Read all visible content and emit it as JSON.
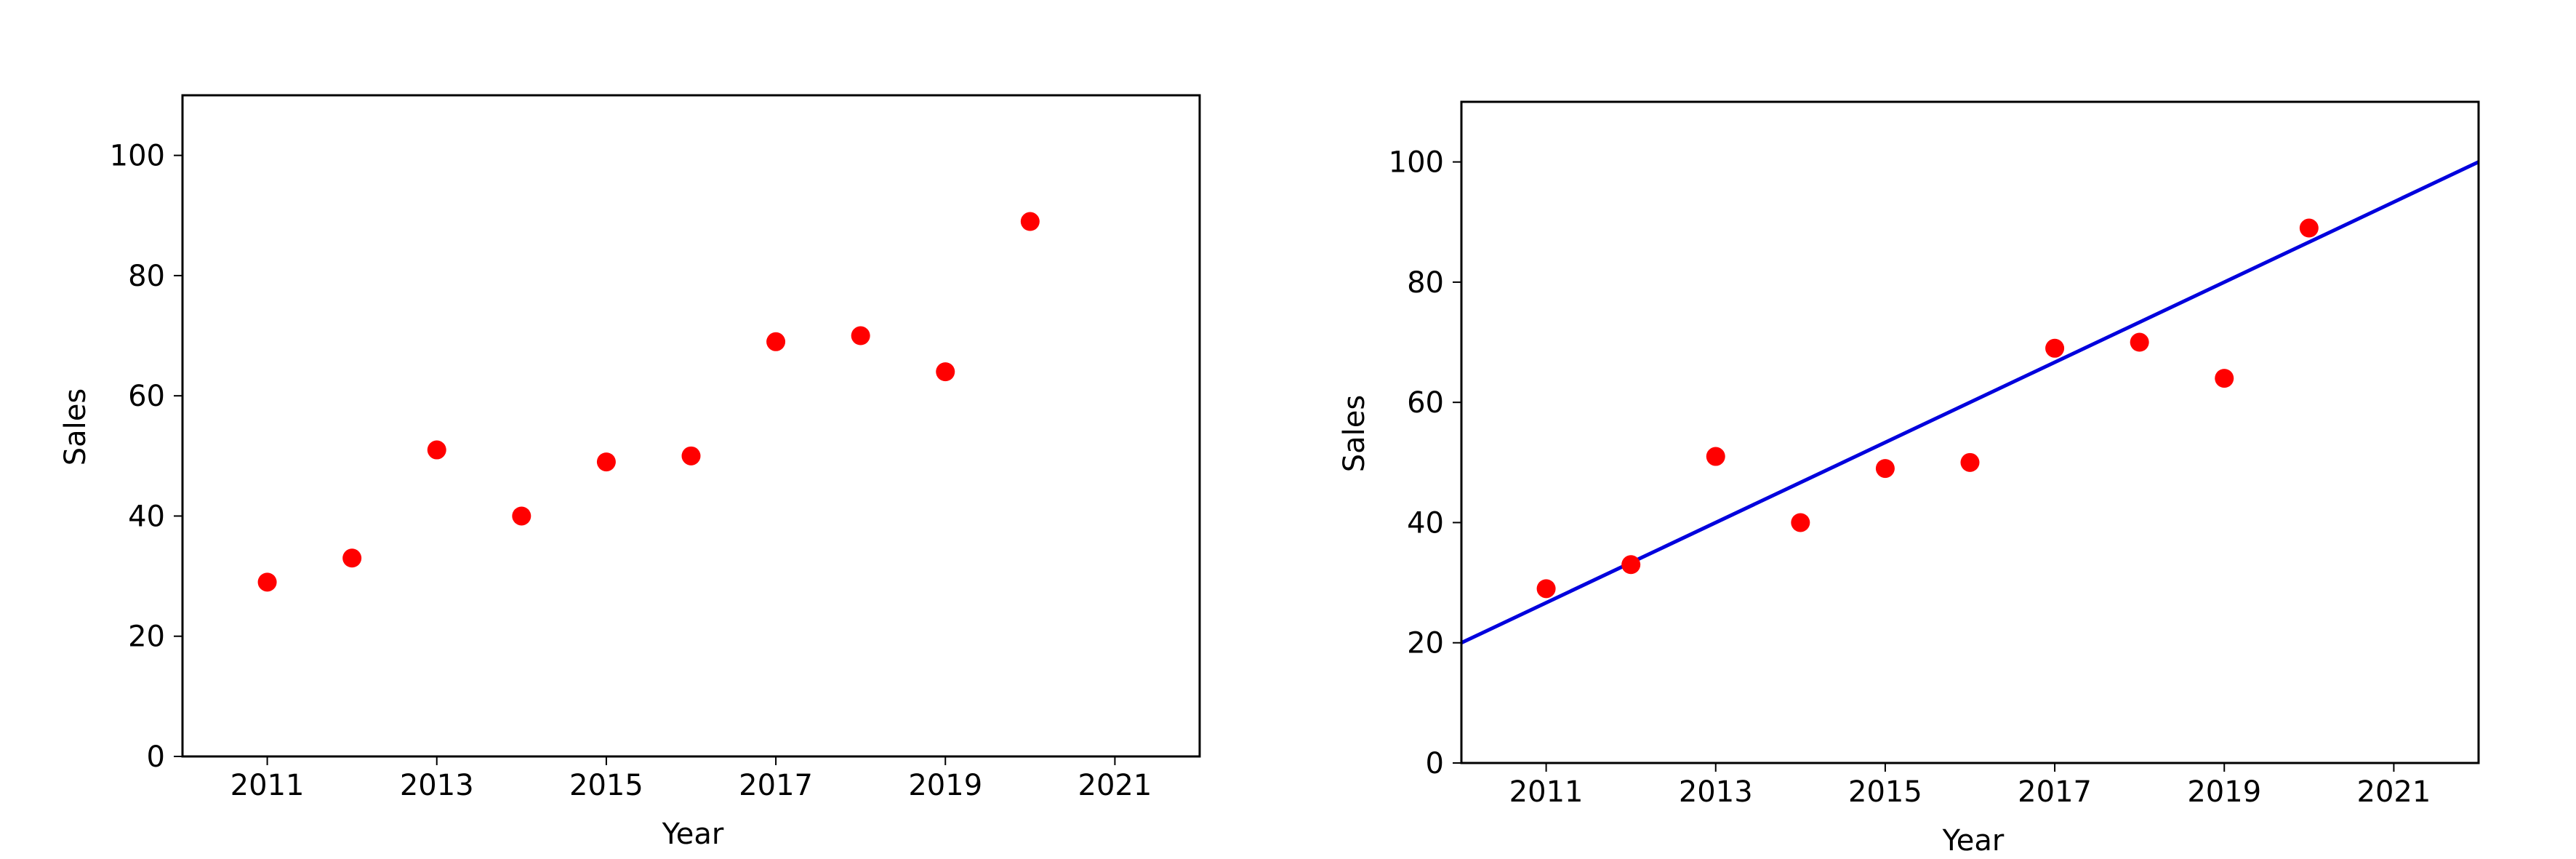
{
  "chart_data": [
    {
      "type": "scatter",
      "title": "",
      "xlabel": "Year",
      "ylabel": "Sales",
      "xlim": [
        2010,
        2022
      ],
      "ylim": [
        0,
        110
      ],
      "xticks": [
        2011,
        2013,
        2015,
        2017,
        2019,
        2021
      ],
      "yticks": [
        0,
        20,
        40,
        60,
        80,
        100
      ],
      "grid": false,
      "legend": "none",
      "series": [
        {
          "color": "#ff0000",
          "x": [
            2011,
            2012,
            2013,
            2014,
            2015,
            2016,
            2017,
            2018,
            2019,
            2020
          ],
          "y": [
            29,
            33,
            51,
            40,
            49,
            50,
            69,
            70,
            64,
            89
          ]
        }
      ]
    },
    {
      "type": "scatter",
      "title": "",
      "xlabel": "Year",
      "ylabel": "Sales",
      "xlim": [
        2010,
        2022
      ],
      "ylim": [
        0,
        110
      ],
      "xticks": [
        2011,
        2013,
        2015,
        2017,
        2019,
        2021
      ],
      "yticks": [
        0,
        20,
        40,
        60,
        80,
        100
      ],
      "grid": false,
      "legend": "none",
      "series": [
        {
          "color": "#ff0000",
          "x": [
            2011,
            2012,
            2013,
            2014,
            2015,
            2016,
            2017,
            2018,
            2019,
            2020
          ],
          "y": [
            29,
            33,
            51,
            40,
            49,
            50,
            69,
            70,
            64,
            89
          ]
        }
      ],
      "fit_line": {
        "type": "line",
        "color": "#0000dd",
        "x": [
          2010,
          2022
        ],
        "y": [
          20,
          100
        ]
      }
    }
  ]
}
